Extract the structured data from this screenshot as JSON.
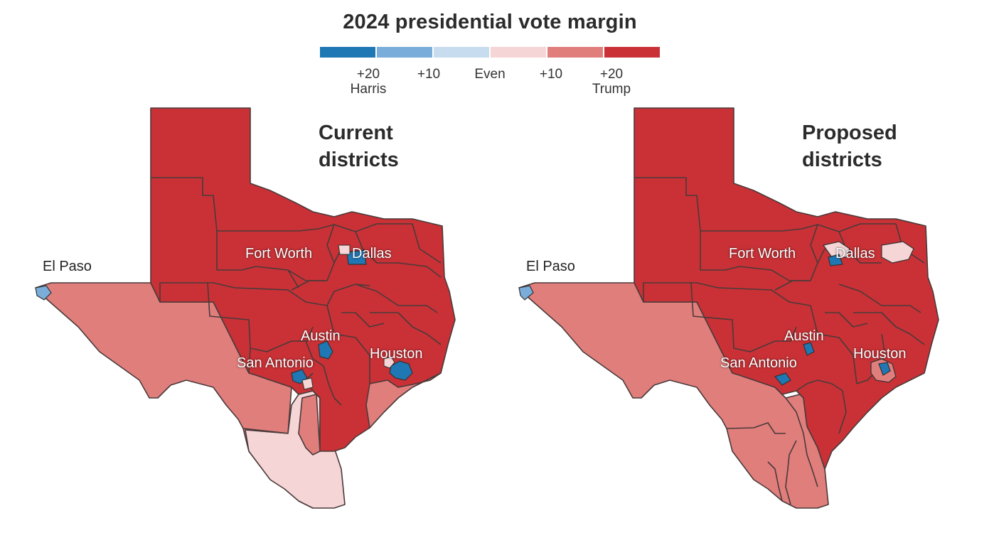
{
  "legend": {
    "title": "2024 presidential vote margin",
    "swatches": [
      {
        "name": "harris-20",
        "color": "#1f77b4"
      },
      {
        "name": "harris-10",
        "color": "#7aadd9"
      },
      {
        "name": "even-harris",
        "color": "#c7dcee"
      },
      {
        "name": "even-trump",
        "color": "#f5d5d6"
      },
      {
        "name": "trump-10",
        "color": "#e07e7c"
      },
      {
        "name": "trump-20",
        "color": "#c93136"
      }
    ],
    "ticks": [
      {
        "line1": "+20",
        "line2": "Harris"
      },
      {
        "line1": "+10",
        "line2": ""
      },
      {
        "line1": "Even",
        "line2": ""
      },
      {
        "line1": "+10",
        "line2": ""
      },
      {
        "line1": "+20",
        "line2": "Trump"
      }
    ]
  },
  "maps": {
    "current": {
      "title_line1": "Current",
      "title_line2": "districts",
      "cities": {
        "fort_worth": "Fort Worth",
        "dallas": "Dallas",
        "el_paso": "El Paso",
        "austin": "Austin",
        "san_antonio": "San Antonio",
        "houston": "Houston"
      }
    },
    "proposed": {
      "title_line1": "Proposed",
      "title_line2": "districts",
      "cities": {
        "fort_worth": "Fort Worth",
        "dallas": "Dallas",
        "el_paso": "El Paso",
        "austin": "Austin",
        "san_antonio": "San Antonio",
        "houston": "Houston"
      }
    }
  },
  "colors": {
    "strong_blue": "#1f77b4",
    "light_blue": "#7aadd9",
    "strong_red": "#c93136",
    "medium_red": "#e07e7c",
    "light_pink": "#f5d5d6",
    "border": "#4a3a3a"
  }
}
